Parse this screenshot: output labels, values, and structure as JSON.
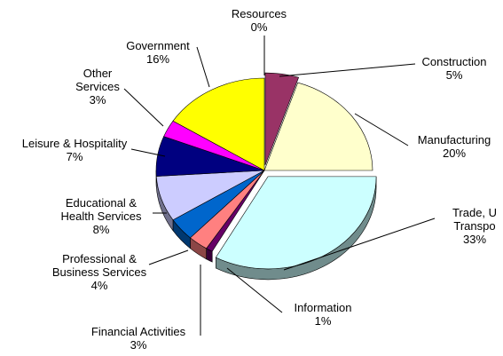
{
  "chart_data": {
    "type": "pie",
    "style": "3d-exploded",
    "title": "",
    "slices": [
      {
        "name": "Resources",
        "value": 0,
        "label": "0%",
        "color": "#993366"
      },
      {
        "name": "Construction",
        "value": 5,
        "label": "5%",
        "color": "#993366"
      },
      {
        "name": "Manufacturing",
        "value": 20,
        "label": "20%",
        "color": "#FFFFCC"
      },
      {
        "name": "Trade, Utilities & Transportation",
        "value": 33,
        "label": "33%",
        "color": "#CCFFFF"
      },
      {
        "name": "Information",
        "value": 1,
        "label": "1%",
        "color": "#660066"
      },
      {
        "name": "Financial Activities",
        "value": 3,
        "label": "3%",
        "color": "#FF8080"
      },
      {
        "name": "Professional & Business Services",
        "value": 4,
        "label": "4%",
        "color": "#0066CC"
      },
      {
        "name": "Educational & Health Services",
        "value": 8,
        "label": "8%",
        "color": "#CCCCFF"
      },
      {
        "name": "Leisure & Hospitality",
        "value": 7,
        "label": "7%",
        "color": "#000080"
      },
      {
        "name": "Other Services",
        "value": 3,
        "label": "3%",
        "color": "#FF00FF"
      },
      {
        "name": "Government",
        "value": 16,
        "label": "16%",
        "color": "#FFFF00"
      }
    ],
    "label_lines": [
      {
        "slice": "Resources",
        "lines": [
          "Resources",
          "0%"
        ]
      },
      {
        "slice": "Construction",
        "lines": [
          "Construction",
          "5%"
        ]
      },
      {
        "slice": "Manufacturing",
        "lines": [
          "Manufacturing",
          "20%"
        ]
      },
      {
        "slice": "Trade, Utilities & Transportation",
        "lines": [
          "Trade, U",
          "Transpo",
          "33%"
        ]
      },
      {
        "slice": "Information",
        "lines": [
          "Information",
          "1%"
        ]
      },
      {
        "slice": "Financial Activities",
        "lines": [
          "Financial Activities",
          "3%"
        ]
      },
      {
        "slice": "Professional & Business Services",
        "lines": [
          "Professional &",
          "Business Services",
          "4%"
        ]
      },
      {
        "slice": "Educational & Health Services",
        "lines": [
          "Educational &",
          "Health Services",
          "8%"
        ]
      },
      {
        "slice": "Leisure & Hospitality",
        "lines": [
          "Leisure & Hospitality",
          "7%"
        ]
      },
      {
        "slice": "Other Services",
        "lines": [
          "Other",
          "Services",
          "3%"
        ]
      },
      {
        "slice": "Government",
        "lines": [
          "Government",
          "16%"
        ]
      }
    ]
  }
}
